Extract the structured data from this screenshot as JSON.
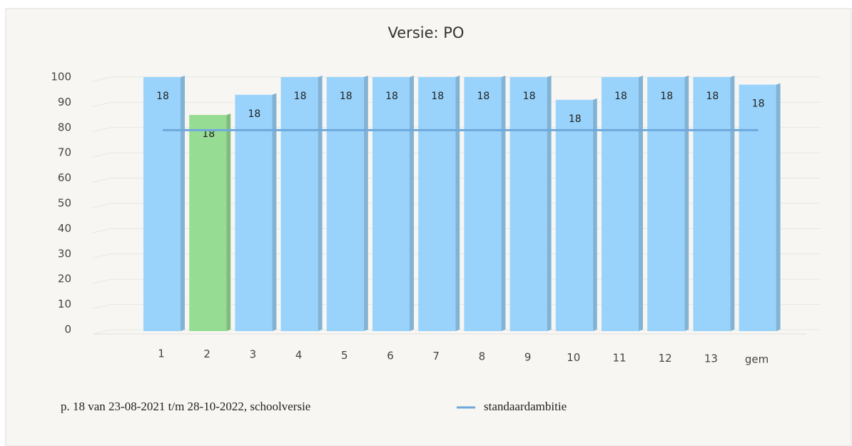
{
  "chart_data": {
    "type": "bar",
    "title": "Versie: PO",
    "categories": [
      "1",
      "2",
      "3",
      "4",
      "5",
      "6",
      "7",
      "8",
      "9",
      "10",
      "11",
      "12",
      "13",
      "gem"
    ],
    "series": [
      {
        "name": "p. 18 van 23-08-2021 t/m 28-10-2022, schoolversie",
        "type": "bar",
        "color": "#99d3fb",
        "point_colors": [
          "#99d3fb",
          "#97dc93",
          "#99d3fb",
          "#99d3fb",
          "#99d3fb",
          "#99d3fb",
          "#99d3fb",
          "#99d3fb",
          "#99d3fb",
          "#99d3fb",
          "#99d3fb",
          "#99d3fb",
          "#99d3fb",
          "#99d3fb"
        ],
        "values": [
          100,
          85,
          93,
          100,
          100,
          100,
          100,
          100,
          100,
          91,
          100,
          100,
          100,
          97
        ],
        "value_labels": [
          "18",
          "18",
          "18",
          "18",
          "18",
          "18",
          "18",
          "18",
          "18",
          "18",
          "18",
          "18",
          "18",
          "18"
        ]
      },
      {
        "name": "standaardambitie",
        "type": "line",
        "color": "#6fa8dc",
        "values": [
          79,
          79,
          79,
          79,
          79,
          79,
          79,
          79,
          79,
          79,
          79,
          79,
          79,
          79
        ]
      }
    ],
    "ylim": [
      0,
      100
    ],
    "yticks": [
      0,
      10,
      20,
      30,
      40,
      50,
      60,
      70,
      80,
      90,
      100
    ],
    "grid": true
  }
}
